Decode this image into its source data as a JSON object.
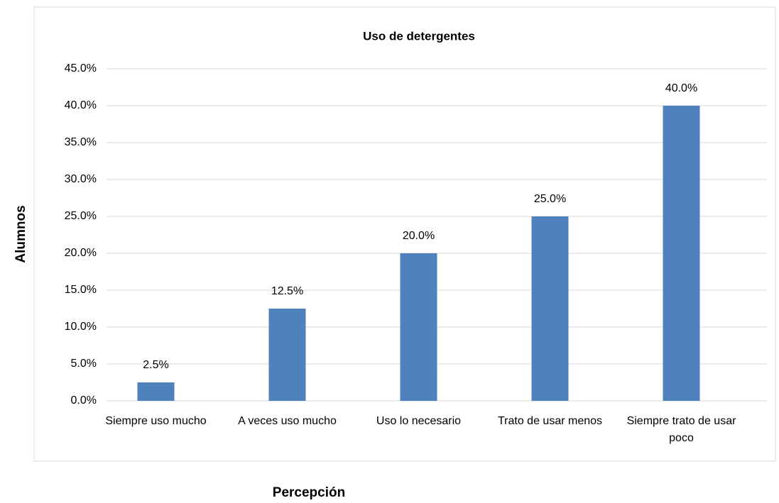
{
  "chart_data": {
    "type": "bar",
    "title": "Uso de detergentes",
    "x_label": "Percepción",
    "y_label": "Alumnos",
    "categories": [
      "Siempre uso mucho",
      "A veces uso mucho",
      "Uso lo necesario",
      "Trato de usar menos",
      "Siempre trato de usar poco"
    ],
    "values": [
      2.5,
      12.5,
      20,
      25,
      40
    ],
    "value_labels": [
      "2.5%",
      "12.5%",
      "20.0%",
      "25.0%",
      "40.0%"
    ],
    "color": "#4f81bd",
    "ylim": [
      0,
      45
    ],
    "yticks": [
      {
        "value": 0,
        "label": "0.0%"
      },
      {
        "value": 5,
        "label": "5.0%"
      },
      {
        "value": 10,
        "label": "10.0%"
      },
      {
        "value": 15,
        "label": "15.0%"
      },
      {
        "value": 20,
        "label": "20.0%"
      },
      {
        "value": 25,
        "label": "25.0%"
      },
      {
        "value": 30,
        "label": "30.0%"
      },
      {
        "value": 35,
        "label": "35.0%"
      },
      {
        "value": 40,
        "label": "40.0%"
      },
      {
        "value": 45,
        "label": "45.0%"
      }
    ],
    "grid": true
  }
}
